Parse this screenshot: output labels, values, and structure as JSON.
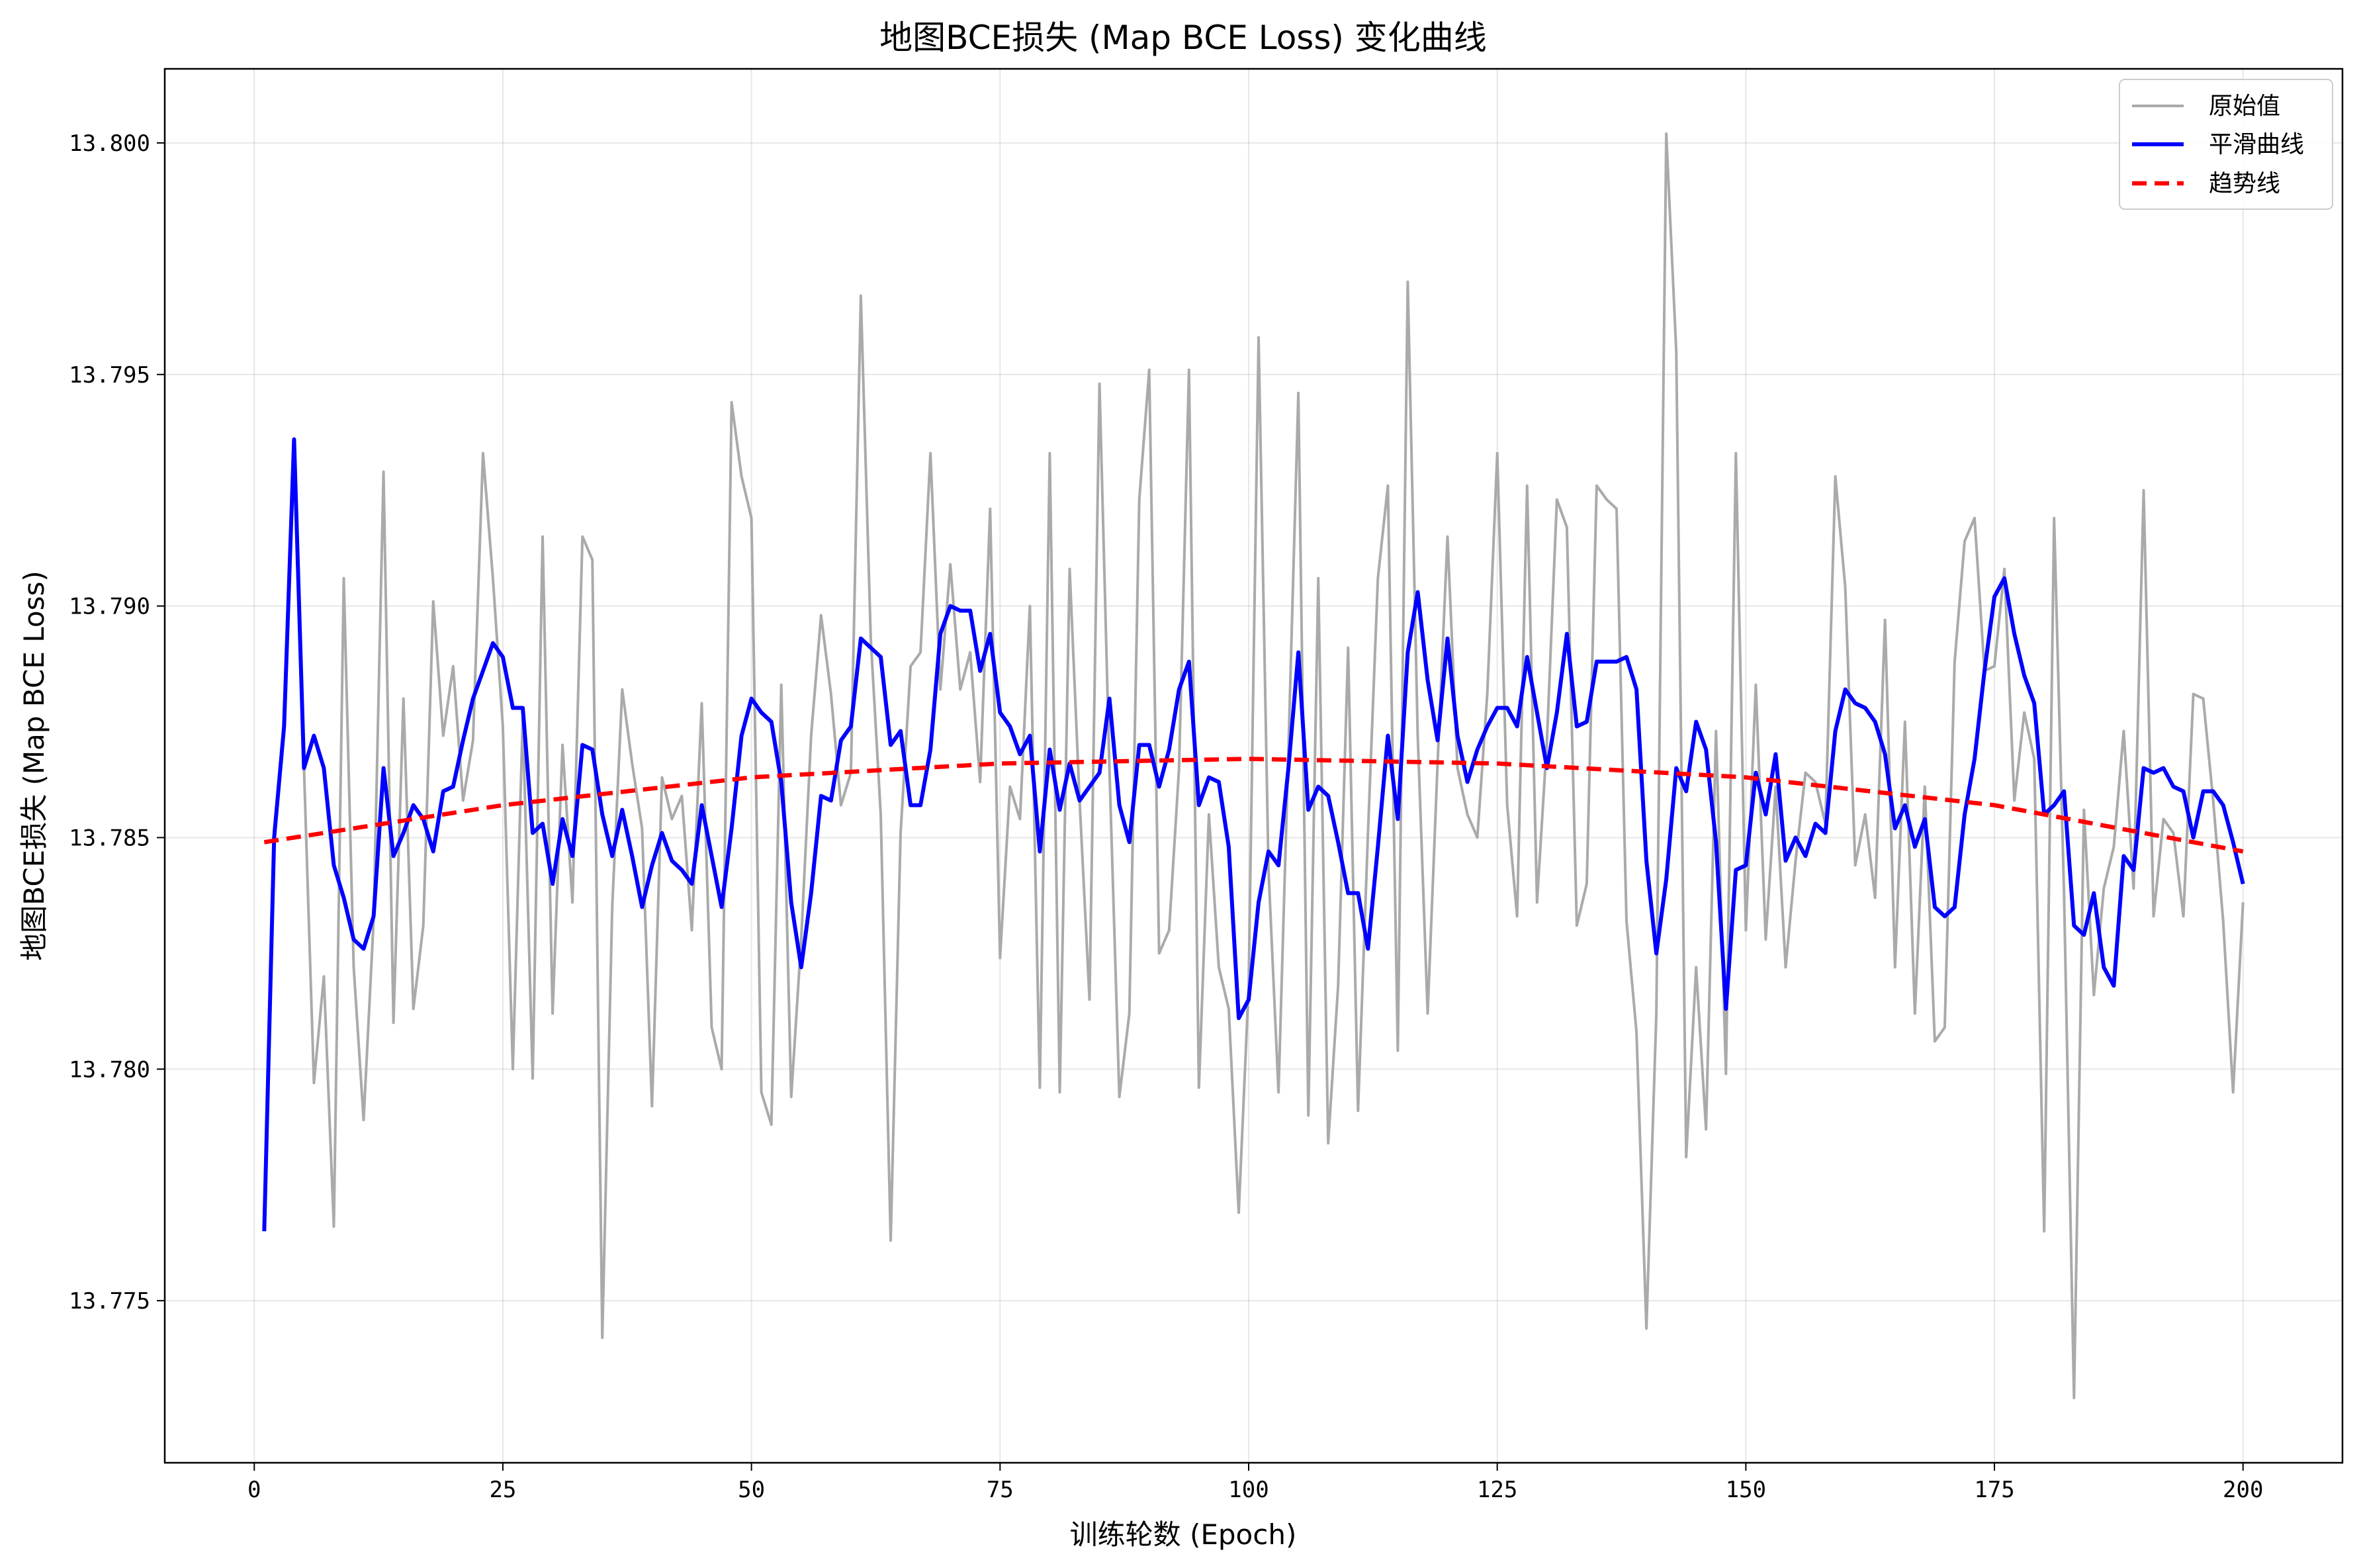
{
  "chart_data": {
    "type": "line",
    "title": "地图BCE损失 (Map BCE Loss) 变化曲线",
    "xlabel": "训练轮数 (Epoch)",
    "ylabel": "地图BCE损失 (Map BCE Loss)",
    "xlim": [
      -9,
      210
    ],
    "ylim": [
      13.7715,
      13.8016
    ],
    "x_ticks": [
      0,
      25,
      50,
      75,
      100,
      125,
      150,
      175,
      200
    ],
    "y_ticks": [
      13.775,
      13.78,
      13.785,
      13.79,
      13.795,
      13.8
    ],
    "x_tick_labels": [
      "0",
      "25",
      "50",
      "75",
      "100",
      "125",
      "150",
      "175",
      "200"
    ],
    "y_tick_labels": [
      "13.775",
      "13.780",
      "13.785",
      "13.790",
      "13.795",
      "13.800"
    ],
    "grid": true,
    "legend_position": "top-right",
    "series": [
      {
        "name": "原始值",
        "color": "#aaaaaa",
        "style": "solid",
        "x_start": 1,
        "x_step": 1,
        "values": [
          13.7765,
          13.7852,
          13.7874,
          13.7936,
          13.7865,
          13.7797,
          13.782,
          13.7766,
          13.7906,
          13.7822,
          13.7789,
          13.7832,
          13.7929,
          13.781,
          13.788,
          13.7813,
          13.7831,
          13.7901,
          13.7872,
          13.7887,
          13.7858,
          13.7871,
          13.7933,
          13.7906,
          13.7874,
          13.78,
          13.7876,
          13.7798,
          13.7915,
          13.7812,
          13.787,
          13.7836,
          13.7915,
          13.791,
          13.7742,
          13.7835,
          13.7882,
          13.7866,
          13.7852,
          13.7792,
          13.7863,
          13.7854,
          13.7859,
          13.783,
          13.7879,
          13.7809,
          13.78,
          13.7944,
          13.7928,
          13.7919,
          13.7795,
          13.7788,
          13.7883,
          13.7794,
          13.7828,
          13.7872,
          13.7898,
          13.7881,
          13.7857,
          13.7864,
          13.7967,
          13.7893,
          13.7855,
          13.7763,
          13.7851,
          13.7887,
          13.789,
          13.7933,
          13.7882,
          13.7909,
          13.7882,
          13.789,
          13.7862,
          13.7921,
          13.7824,
          13.7861,
          13.7854,
          13.79,
          13.7796,
          13.7933,
          13.7795,
          13.7908,
          13.7858,
          13.7815,
          13.7948,
          13.7865,
          13.7794,
          13.7812,
          13.7923,
          13.7951,
          13.7825,
          13.783,
          13.7865,
          13.7951,
          13.7796,
          13.7855,
          13.7822,
          13.7813,
          13.7769,
          13.7818,
          13.7958,
          13.7843,
          13.7795,
          13.7869,
          13.7946,
          13.779,
          13.7906,
          13.7784,
          13.7818,
          13.7891,
          13.7791,
          13.7851,
          13.7906,
          13.7926,
          13.7804,
          13.797,
          13.7872,
          13.7812,
          13.7866,
          13.7915,
          13.7865,
          13.7855,
          13.785,
          13.7881,
          13.7933,
          13.7857,
          13.7833,
          13.7926,
          13.7836,
          13.7871,
          13.7923,
          13.7917,
          13.7831,
          13.784,
          13.7926,
          13.7923,
          13.7921,
          13.7832,
          13.7808,
          13.7744,
          13.7812,
          13.8002,
          13.7955,
          13.7781,
          13.7822,
          13.7787,
          13.7873,
          13.7799,
          13.7933,
          13.783,
          13.7883,
          13.7828,
          13.7861,
          13.7822,
          13.7845,
          13.7864,
          13.7862,
          13.7853,
          13.7928,
          13.7904,
          13.7844,
          13.7855,
          13.7837,
          13.7897,
          13.7822,
          13.7875,
          13.7812,
          13.7861,
          13.7806,
          13.7809,
          13.7888,
          13.7914,
          13.7919,
          13.7886,
          13.7887,
          13.7908,
          13.7858,
          13.7877,
          13.7867,
          13.7765,
          13.7919,
          13.7838,
          13.7729,
          13.7856,
          13.7816,
          13.7839,
          13.7848,
          13.7873,
          13.7839,
          13.7925,
          13.7833,
          13.7854,
          13.7851,
          13.7833,
          13.7881,
          13.788,
          13.7858,
          13.7832,
          13.7795,
          13.7836
        ]
      },
      {
        "name": "平滑曲线",
        "color": "#0000ff",
        "style": "solid",
        "x_start": 1,
        "x_step": 1,
        "values": [
          13.7765,
          13.785,
          13.7874,
          13.7936,
          13.7865,
          13.7872,
          13.7865,
          13.7844,
          13.7837,
          13.7828,
          13.7826,
          13.7833,
          13.7865,
          13.7846,
          13.7851,
          13.7857,
          13.7854,
          13.7847,
          13.786,
          13.7861,
          13.7871,
          13.788,
          13.7886,
          13.7892,
          13.7889,
          13.7878,
          13.7878,
          13.7851,
          13.7853,
          13.784,
          13.7854,
          13.7846,
          13.787,
          13.7869,
          13.7855,
          13.7846,
          13.7856,
          13.7846,
          13.7835,
          13.7844,
          13.7851,
          13.7845,
          13.7843,
          13.784,
          13.7857,
          13.7846,
          13.7835,
          13.7852,
          13.7872,
          13.788,
          13.7877,
          13.7875,
          13.7862,
          13.7836,
          13.7822,
          13.7838,
          13.7859,
          13.7858,
          13.7871,
          13.7874,
          13.7893,
          13.7891,
          13.7889,
          13.787,
          13.7873,
          13.7857,
          13.7857,
          13.7869,
          13.7894,
          13.79,
          13.7899,
          13.7899,
          13.7886,
          13.7894,
          13.7877,
          13.7874,
          13.7868,
          13.7872,
          13.7847,
          13.7869,
          13.7856,
          13.7866,
          13.7858,
          13.7861,
          13.7864,
          13.788,
          13.7857,
          13.7849,
          13.787,
          13.787,
          13.7861,
          13.7869,
          13.7882,
          13.7888,
          13.7857,
          13.7863,
          13.7862,
          13.7848,
          13.7811,
          13.7815,
          13.7836,
          13.7847,
          13.7844,
          13.7865,
          13.789,
          13.7856,
          13.7861,
          13.7859,
          13.7849,
          13.7838,
          13.7838,
          13.7826,
          13.7848,
          13.7872,
          13.7854,
          13.789,
          13.7903,
          13.7884,
          13.7871,
          13.7893,
          13.7872,
          13.7862,
          13.7869,
          13.7874,
          13.7878,
          13.7878,
          13.7874,
          13.7889,
          13.7877,
          13.7865,
          13.7877,
          13.7894,
          13.7874,
          13.7875,
          13.7888,
          13.7888,
          13.7888,
          13.7889,
          13.7882,
          13.7845,
          13.7825,
          13.7841,
          13.7865,
          13.786,
          13.7875,
          13.7869,
          13.7849,
          13.7813,
          13.7843,
          13.7844,
          13.7864,
          13.7855,
          13.7868,
          13.7845,
          13.785,
          13.7846,
          13.7853,
          13.7851,
          13.7873,
          13.7882,
          13.7879,
          13.7878,
          13.7875,
          13.7868,
          13.7852,
          13.7857,
          13.7848,
          13.7854,
          13.7835,
          13.7833,
          13.7835,
          13.7855,
          13.7867,
          13.7886,
          13.7902,
          13.7906,
          13.7894,
          13.7885,
          13.7879,
          13.7855,
          13.7857,
          13.786,
          13.7831,
          13.7829,
          13.7838,
          13.7822,
          13.7818,
          13.7846,
          13.7843,
          13.7865,
          13.7864,
          13.7865,
          13.7861,
          13.786,
          13.785,
          13.786,
          13.786,
          13.7857,
          13.7849,
          13.784
        ]
      },
      {
        "name": "趋势线",
        "color": "#ff0000",
        "style": "dashed",
        "x": [
          1,
          25,
          50,
          75,
          100,
          125,
          150,
          175,
          200
        ],
        "values": [
          13.7849,
          13.7857,
          13.7863,
          13.7866,
          13.7867,
          13.7866,
          13.7863,
          13.7857,
          13.7847
        ]
      }
    ]
  }
}
